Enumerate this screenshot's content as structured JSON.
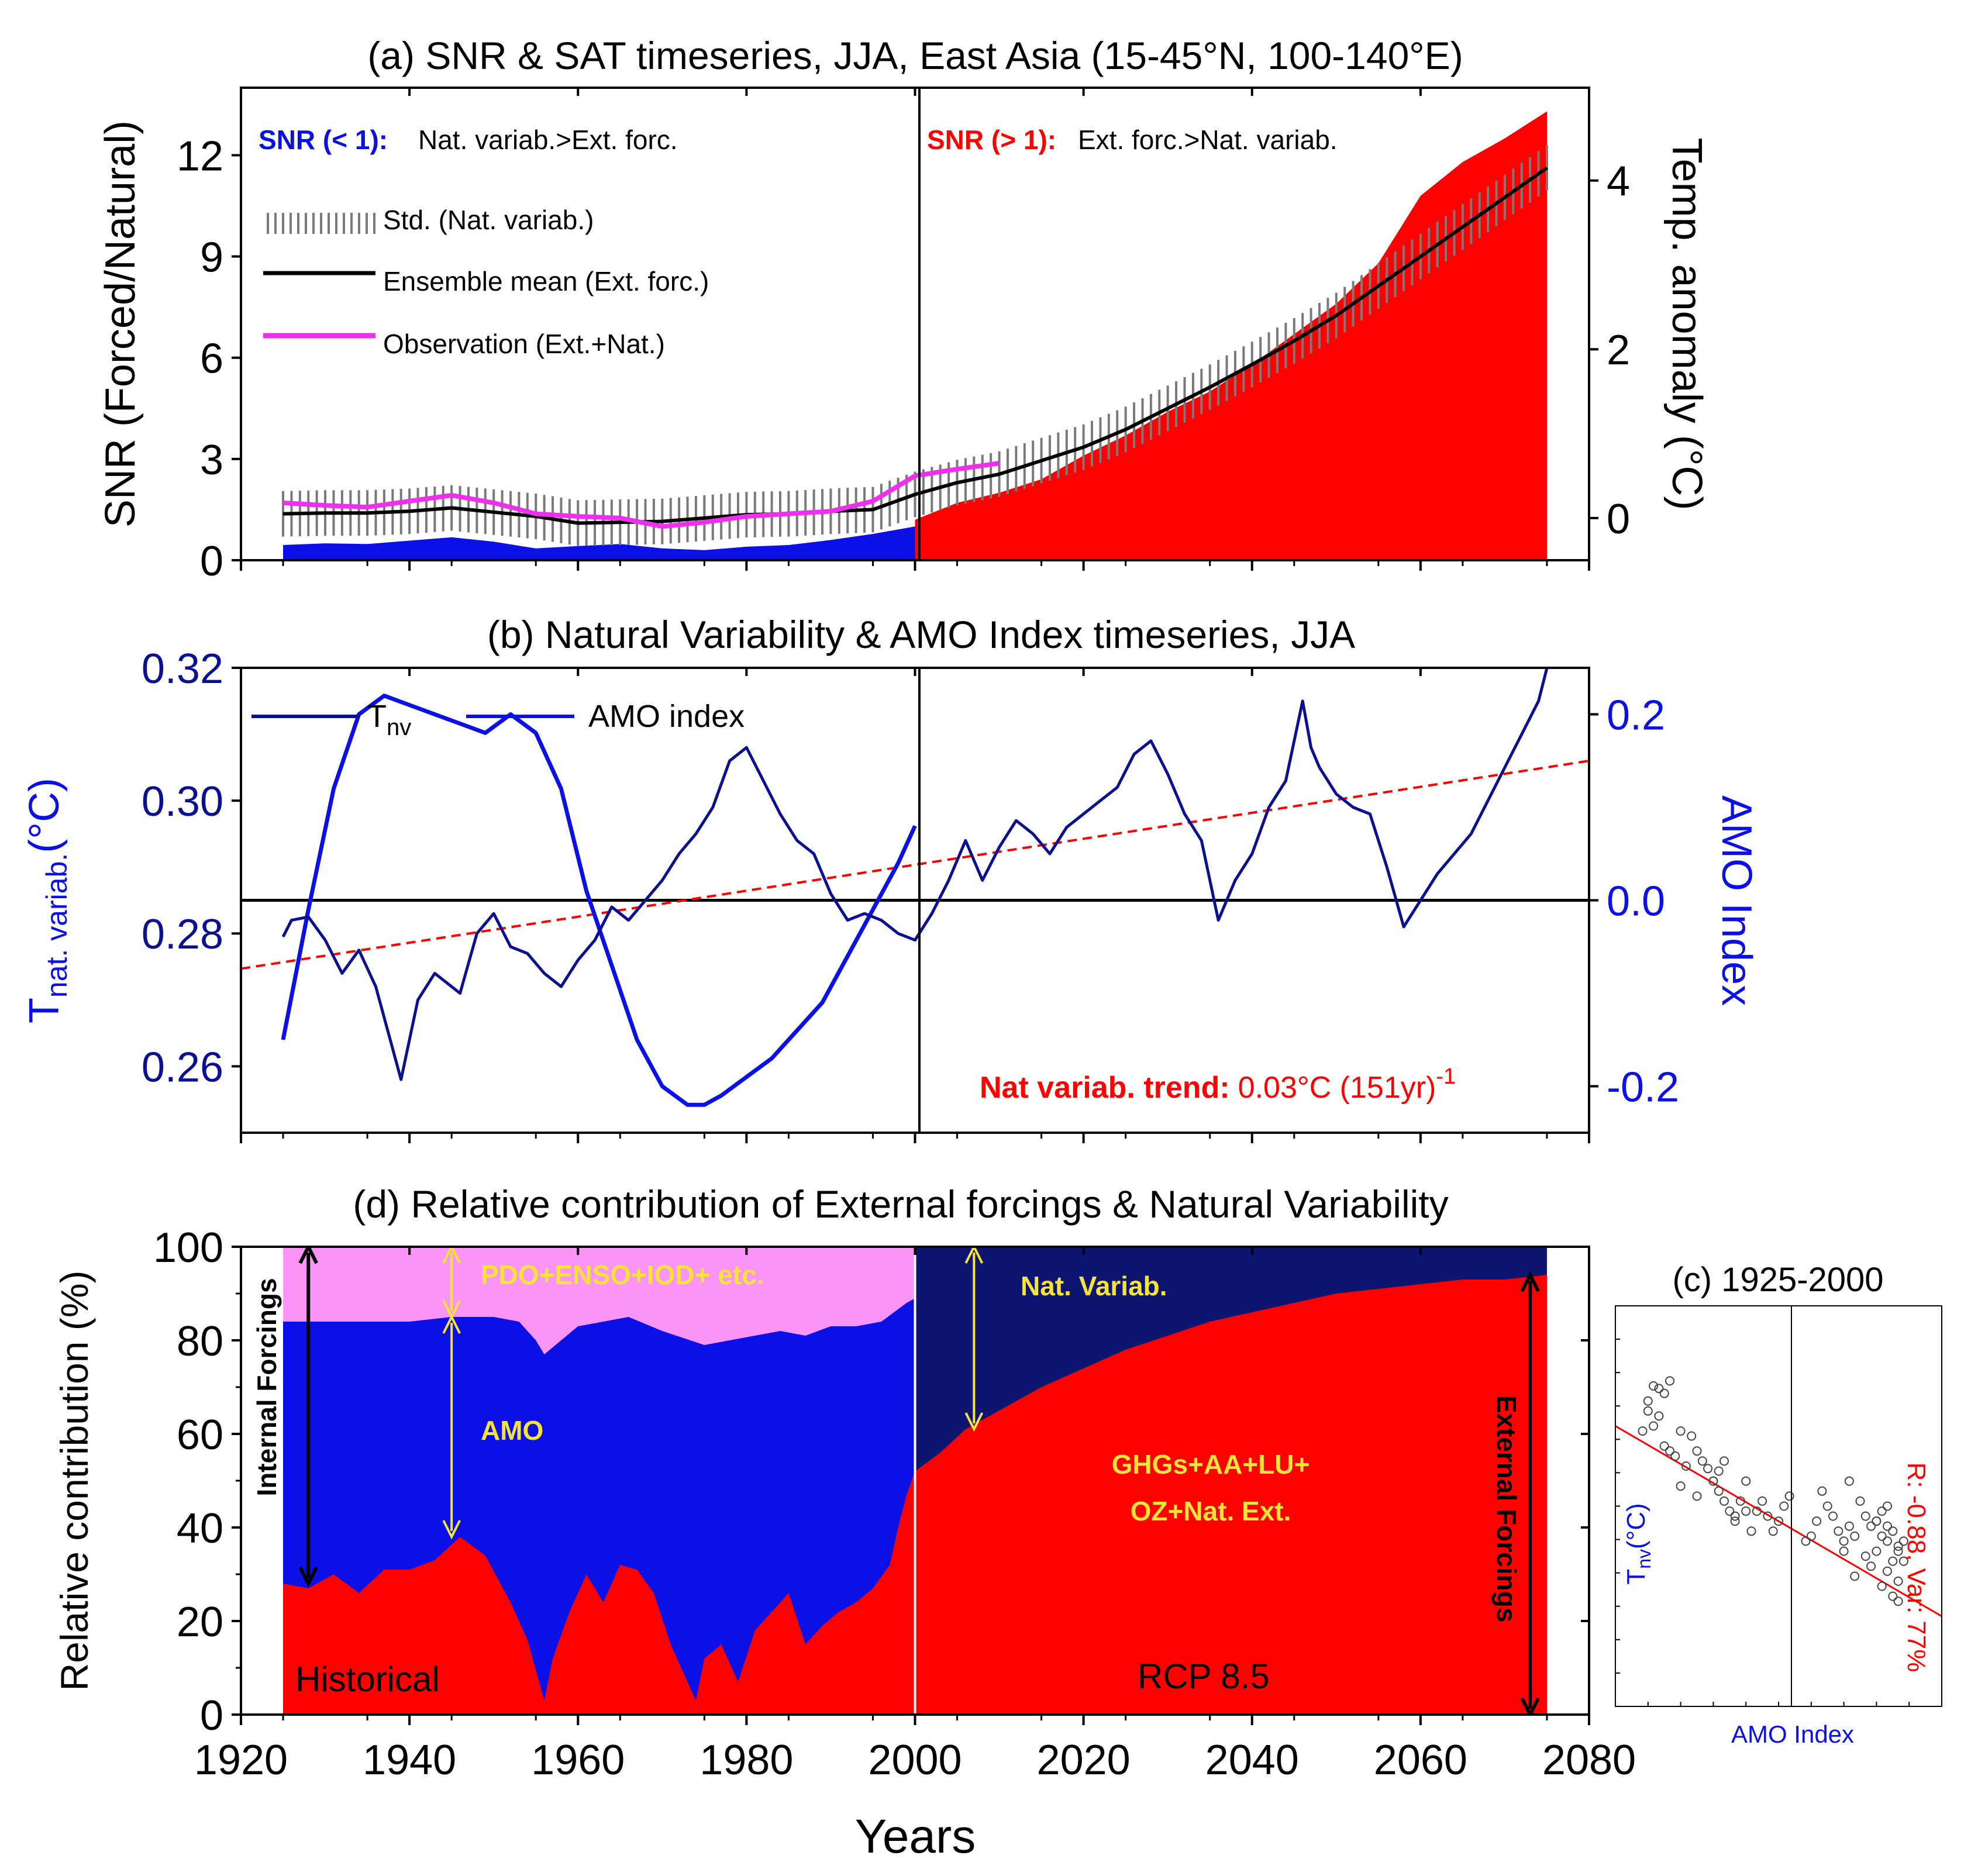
{
  "colors": {
    "blue": "#0b10e6",
    "navy": "#0c1670",
    "red": "#ff0000",
    "pink": "#fb94f7",
    "magenta": "#ee2fee",
    "yellow": "#f5e33a",
    "deepBlue": "#0a108f"
  },
  "xaxis": {
    "label": "Years",
    "range": [
      1920,
      2080
    ],
    "ticks": [
      {
        "v": 1920,
        "l": "1920"
      },
      {
        "v": 1940,
        "l": "1940"
      },
      {
        "v": 1960,
        "l": "1960"
      },
      {
        "v": 1980,
        "l": "1980"
      },
      {
        "v": 2000,
        "l": "2000"
      },
      {
        "v": 2020,
        "l": "2020"
      },
      {
        "v": 2040,
        "l": "2040"
      },
      {
        "v": 2060,
        "l": "2060"
      },
      {
        "v": 2080,
        "l": "2080"
      }
    ]
  },
  "chart_data": [
    {
      "id": "a",
      "type": "area",
      "title": "(a) SNR & SAT timeseries, JJA, East Asia (15-45°N, 100-140°E)",
      "ylabel": "SNR (Forced/Natural)",
      "ylabel2": "Temp. anomaly (°C)",
      "ylim": [
        0,
        14
      ],
      "y2lim": [
        -0.5,
        5.1
      ],
      "yticks": [
        {
          "v": 0,
          "l": "0"
        },
        {
          "v": 3,
          "l": "3"
        },
        {
          "v": 6,
          "l": "6"
        },
        {
          "v": 9,
          "l": "9"
        },
        {
          "v": 12,
          "l": "12"
        }
      ],
      "y2ticks": [
        {
          "v": 0,
          "l": "0"
        },
        {
          "v": 2,
          "l": "2"
        },
        {
          "v": 4,
          "l": "4"
        }
      ],
      "annotations": {
        "snrLow": "SNR (< 1):",
        "snrLowText": "Nat. variab.>Ext. forc.",
        "snrHigh": "SNR (> 1):",
        "snrHighText": "Ext. forc.>Nat. variab."
      },
      "legend": [
        {
          "label": "Std. (Nat. variab.)"
        },
        {
          "label": "Ensemble mean (Ext. forc.)"
        },
        {
          "label": "Observation (Ext.+Nat.)"
        }
      ],
      "series": [
        {
          "name": "SNR < 1",
          "x": [
            1925,
            1930,
            1935,
            1940,
            1945,
            1950,
            1955,
            1960,
            1965,
            1970,
            1975,
            1980,
            1985,
            1990,
            1995,
            2000
          ],
          "values": [
            0.45,
            0.5,
            0.48,
            0.58,
            0.68,
            0.55,
            0.35,
            0.42,
            0.48,
            0.35,
            0.3,
            0.4,
            0.45,
            0.6,
            0.78,
            1.0
          ]
        },
        {
          "name": "SNR > 1",
          "x": [
            2000,
            2005,
            2010,
            2015,
            2020,
            2025,
            2030,
            2035,
            2040,
            2045,
            2050,
            2055,
            2060,
            2065,
            2070,
            2075
          ],
          "values": [
            1.2,
            1.7,
            2.0,
            2.4,
            3.1,
            3.7,
            4.4,
            5.0,
            5.8,
            6.7,
            7.6,
            8.8,
            10.8,
            11.8,
            12.5,
            13.3
          ]
        },
        {
          "name": "Ensemble mean (Ext. forc.)",
          "axis": "y2",
          "x": [
            1925,
            1930,
            1935,
            1940,
            1945,
            1950,
            1955,
            1960,
            1965,
            1970,
            1975,
            1980,
            1985,
            1990,
            1995,
            2000,
            2005,
            2010,
            2015,
            2020,
            2025,
            2030,
            2035,
            2040,
            2045,
            2050,
            2055,
            2060,
            2065,
            2070,
            2075
          ],
          "values": [
            0.05,
            0.06,
            0.06,
            0.08,
            0.12,
            0.07,
            0.02,
            -0.06,
            -0.05,
            -0.04,
            0.0,
            0.04,
            0.05,
            0.08,
            0.1,
            0.28,
            0.42,
            0.52,
            0.68,
            0.84,
            1.05,
            1.3,
            1.55,
            1.82,
            2.1,
            2.4,
            2.75,
            3.1,
            3.45,
            3.8,
            4.15
          ]
        },
        {
          "name": "Observation (Ext.+Nat.)",
          "axis": "y2",
          "x": [
            1925,
            1930,
            1935,
            1940,
            1945,
            1950,
            1955,
            1960,
            1965,
            1970,
            1975,
            1980,
            1985,
            1990,
            1995,
            2000,
            2005,
            2010
          ],
          "values": [
            0.18,
            0.15,
            0.13,
            0.2,
            0.27,
            0.18,
            0.05,
            0.02,
            0.0,
            -0.1,
            -0.05,
            0.02,
            0.05,
            0.08,
            0.2,
            0.5,
            0.58,
            0.65
          ]
        },
        {
          "name": "Std. (Nat. variab.)",
          "axis": "y2",
          "halfwidth": 0.27
        }
      ]
    },
    {
      "id": "b",
      "type": "line",
      "title": "(b) Natural Variability & AMO Index timeseries, JJA",
      "ylabel": "T",
      "ylabelSub": "nat. variab.",
      "ylabelUnit": "(°C)",
      "ylabel2": "AMO Index",
      "ylim": [
        0.25,
        0.32
      ],
      "y2lim": [
        -0.25,
        0.25
      ],
      "yticks": [
        {
          "v": 0.26,
          "l": "0.26"
        },
        {
          "v": 0.28,
          "l": "0.28"
        },
        {
          "v": 0.3,
          "l": "0.30"
        },
        {
          "v": 0.32,
          "l": "0.32"
        }
      ],
      "y2ticks": [
        {
          "v": -0.2,
          "l": "-0.2"
        },
        {
          "v": 0.0,
          "l": "0.0"
        },
        {
          "v": 0.2,
          "l": "0.2"
        }
      ],
      "legend": [
        {
          "label": "T",
          "sub": "nv"
        },
        {
          "label": "AMO index"
        }
      ],
      "trendLabel": "Nat variab. trend:",
      "trendValue": "0.03°C (151yr)",
      "trendExp": "-1",
      "series": [
        {
          "name": "Tnv",
          "x": [
            1925,
            1926,
            1928,
            1930,
            1932,
            1934,
            1936,
            1939,
            1941,
            1943,
            1945,
            1946,
            1948,
            1950,
            1952,
            1954,
            1956,
            1958,
            1960,
            1962,
            1964,
            1966,
            1968,
            1970,
            1972,
            1974,
            1976,
            1978,
            1980,
            1982,
            1984,
            1986,
            1988,
            1990,
            1992,
            1994,
            1996,
            1998,
            2000,
            2002,
            2004,
            2006,
            2008,
            2010,
            2012,
            2014,
            2016,
            2018,
            2020,
            2022,
            2024,
            2026,
            2028,
            2030,
            2032,
            2034,
            2036,
            2038,
            2040,
            2042,
            2044,
            2046,
            2047,
            2048,
            2050,
            2052,
            2054,
            2056,
            2058,
            2060,
            2062,
            2064,
            2066,
            2068,
            2070,
            2072,
            2074,
            2075
          ],
          "values": [
            0.2795,
            0.282,
            0.2825,
            0.279,
            0.274,
            0.2775,
            0.272,
            0.258,
            0.27,
            0.274,
            0.272,
            0.271,
            0.28,
            0.283,
            0.278,
            0.277,
            0.274,
            0.272,
            0.276,
            0.279,
            0.284,
            0.282,
            0.285,
            0.288,
            0.292,
            0.295,
            0.299,
            0.306,
            0.308,
            0.303,
            0.298,
            0.294,
            0.292,
            0.286,
            0.282,
            0.283,
            0.282,
            0.28,
            0.279,
            0.283,
            0.288,
            0.294,
            0.288,
            0.293,
            0.297,
            0.295,
            0.292,
            0.296,
            0.298,
            0.3,
            0.302,
            0.307,
            0.309,
            0.304,
            0.298,
            0.294,
            0.282,
            0.288,
            0.292,
            0.299,
            0.303,
            0.315,
            0.308,
            0.305,
            0.301,
            0.299,
            0.298,
            0.29,
            0.281,
            0.285,
            0.289,
            0.292,
            0.295,
            0.3,
            0.305,
            0.31,
            0.315,
            0.32
          ]
        },
        {
          "name": "AMO index",
          "axis": "y2",
          "x": [
            1925,
            1928,
            1931,
            1934,
            1937,
            1940,
            1943,
            1946,
            1949,
            1952,
            1955,
            1958,
            1961,
            1964,
            1967,
            1970,
            1973,
            1975,
            1977,
            1980,
            1983,
            1986,
            1989,
            1992,
            1995,
            1998,
            2000
          ],
          "values": [
            -0.15,
            -0.01,
            0.12,
            0.2,
            0.22,
            0.21,
            0.2,
            0.19,
            0.18,
            0.2,
            0.18,
            0.12,
            0.01,
            -0.07,
            -0.15,
            -0.2,
            -0.22,
            -0.22,
            -0.21,
            -0.19,
            -0.17,
            -0.14,
            -0.11,
            -0.06,
            -0.01,
            0.04,
            0.08
          ]
        },
        {
          "name": "Nat variab. trend",
          "x": [
            1920,
            2080
          ],
          "values": [
            0.2747,
            0.306
          ]
        }
      ]
    },
    {
      "id": "d",
      "type": "area",
      "title": "(d) Relative contribution of External forcings & Natural Variability",
      "ylabel": "Relative contribution (%)",
      "ylim": [
        0,
        100
      ],
      "yticks": [
        {
          "v": 0,
          "l": "0"
        },
        {
          "v": 20,
          "l": "20"
        },
        {
          "v": 40,
          "l": "40"
        },
        {
          "v": 60,
          "l": "60"
        },
        {
          "v": 80,
          "l": "80"
        },
        {
          "v": 100,
          "l": "100"
        }
      ],
      "labels": {
        "pdo": "PDO+ENSO+IOD+ etc.",
        "amo": "AMO",
        "natVariab": "Nat. Variab.",
        "internal": "Internal Forcings",
        "external": "External Forcings",
        "ghg1": "GHGs+AA+LU+",
        "ghg2": "OZ+Nat. Ext.",
        "historical": "Historical",
        "rcp": "RCP 8.5"
      },
      "series": [
        {
          "name": "External (historical)",
          "x": [
            1925,
            1928,
            1931,
            1934,
            1937,
            1940,
            1943,
            1946,
            1949,
            1952,
            1954,
            1956,
            1957,
            1959,
            1961,
            1963,
            1965,
            1967,
            1969,
            1971,
            1973,
            1974,
            1975,
            1977,
            1979,
            1981,
            1983,
            1985,
            1987,
            1989,
            1991,
            1993,
            1995,
            1997,
            1998,
            1999,
            2000
          ],
          "values": [
            28,
            27,
            30,
            26,
            31,
            31,
            33,
            38,
            34,
            24,
            16,
            3,
            12,
            22,
            30,
            24,
            32,
            31,
            26,
            15,
            7,
            3,
            12,
            15,
            7,
            18,
            22,
            26,
            15,
            19,
            22,
            24,
            27,
            32,
            40,
            47,
            52
          ]
        },
        {
          "name": "AMO top",
          "x": [
            1925,
            1930,
            1935,
            1940,
            1945,
            1950,
            1953,
            1955,
            1956,
            1958,
            1960,
            1963,
            1966,
            1970,
            1975,
            1978,
            1981,
            1984,
            1987,
            1990,
            1993,
            1996,
            1999,
            2000
          ],
          "values": [
            84,
            84,
            84,
            84,
            85,
            85,
            84,
            80,
            77,
            80,
            83,
            84,
            85,
            82,
            79,
            80,
            81,
            82,
            81,
            83,
            83,
            84,
            88,
            89
          ]
        },
        {
          "name": "External (RCP 8.5)",
          "x": [
            2000,
            2003,
            2006,
            2010,
            2015,
            2020,
            2025,
            2030,
            2035,
            2040,
            2045,
            2050,
            2055,
            2060,
            2065,
            2070,
            2075
          ],
          "values": [
            52,
            56,
            61,
            65,
            70,
            74,
            78,
            81,
            84,
            86,
            88,
            90,
            91,
            92,
            93,
            93,
            94
          ]
        }
      ]
    },
    {
      "id": "c",
      "type": "scatter",
      "title": "(c) 1925-2000",
      "xlabel": "AMO Index",
      "ylabel": "T",
      "ylabelSub": "nv",
      "ylabelUnit": "(°C)",
      "stat": "R: -0.88, Var: 77%",
      "xlim": [
        -0.3,
        0.3
      ],
      "ylim": [
        0.245,
        0.325
      ],
      "x": [
        -0.25,
        -0.24,
        -0.23,
        -0.22,
        -0.21,
        -0.2,
        -0.21,
        -0.19,
        -0.18,
        -0.2,
        -0.17,
        -0.16,
        -0.15,
        -0.14,
        -0.13,
        -0.12,
        -0.11,
        -0.1,
        -0.09,
        -0.08,
        -0.07,
        -0.06,
        -0.12,
        -0.11,
        -0.1,
        -0.08,
        -0.05,
        -0.04,
        -0.03,
        -0.02,
        -0.01,
        0.0,
        0.01,
        0.02,
        -0.22,
        -0.23,
        -0.24,
        -0.18,
        -0.15,
        -0.06,
        0.05,
        0.07,
        0.08,
        0.1,
        0.12,
        0.13,
        0.14,
        0.15,
        0.16,
        0.17,
        0.18,
        0.19,
        0.2,
        0.21,
        0.22,
        0.18,
        0.19,
        0.2,
        0.21,
        0.22,
        0.17,
        0.16,
        0.14,
        0.12,
        0.11,
        0.2,
        0.22,
        0.23,
        0.21,
        0.19,
        0.18,
        0.23,
        0.22,
        0.2,
        0.13,
        0.09,
        0.06
      ],
      "y": [
        0.3,
        0.306,
        0.309,
        0.3085,
        0.3075,
        0.31,
        0.297,
        0.295,
        0.3,
        0.296,
        0.293,
        0.299,
        0.296,
        0.294,
        0.2925,
        0.29,
        0.288,
        0.286,
        0.284,
        0.282,
        0.286,
        0.284,
        0.29,
        0.292,
        0.294,
        0.283,
        0.28,
        0.284,
        0.286,
        0.283,
        0.28,
        0.282,
        0.285,
        0.287,
        0.303,
        0.301,
        0.304,
        0.289,
        0.287,
        0.29,
        0.278,
        0.282,
        0.288,
        0.283,
        0.278,
        0.281,
        0.279,
        0.286,
        0.283,
        0.281,
        0.282,
        0.284,
        0.278,
        0.28,
        0.277,
        0.276,
        0.279,
        0.281,
        0.274,
        0.276,
        0.273,
        0.275,
        0.271,
        0.276,
        0.28,
        0.272,
        0.27,
        0.278,
        0.267,
        0.269,
        0.282,
        0.274,
        0.266,
        0.285,
        0.29,
        0.285,
        0.279
      ],
      "fit": {
        "x": [
          -0.3,
          0.3
        ],
        "y": [
          0.301,
          0.263
        ]
      }
    }
  ]
}
